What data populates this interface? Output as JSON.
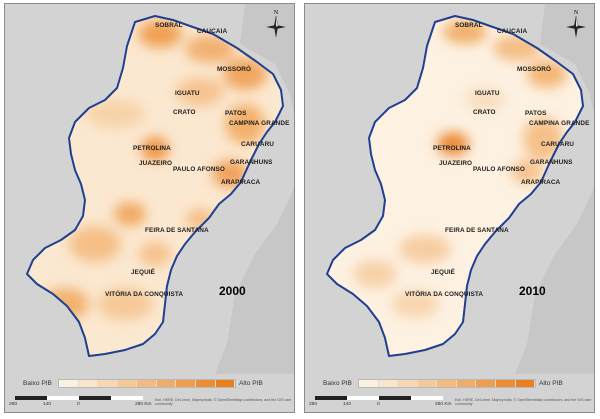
{
  "maps": [
    {
      "year": "2000",
      "cities": [
        {
          "name": "SOBRAL"
        },
        {
          "name": "CAUCAIA"
        },
        {
          "name": "MOSSORÓ"
        },
        {
          "name": "IGUATU"
        },
        {
          "name": "CRATO"
        },
        {
          "name": "PATOS"
        },
        {
          "name": "CAMPINA GRANDE"
        },
        {
          "name": "PETROLINA"
        },
        {
          "name": "CARUARU"
        },
        {
          "name": "JUAZEIRO"
        },
        {
          "name": "GARANHUNS"
        },
        {
          "name": "PAULO AFONSO"
        },
        {
          "name": "ARAPIRACA"
        },
        {
          "name": "FEIRA DE SANTANA"
        },
        {
          "name": "JEQUIÉ"
        },
        {
          "name": "VITÓRIA DA CONQUISTA"
        }
      ]
    },
    {
      "year": "2010",
      "cities": [
        {
          "name": "SOBRAL"
        },
        {
          "name": "CAUCAIA"
        },
        {
          "name": "MOSSORÓ"
        },
        {
          "name": "IGUATU"
        },
        {
          "name": "CRATO"
        },
        {
          "name": "PATOS"
        },
        {
          "name": "CAMPINA GRANDE"
        },
        {
          "name": "PETROLINA"
        },
        {
          "name": "CARUARU"
        },
        {
          "name": "JUAZEIRO"
        },
        {
          "name": "GARANHUNS"
        },
        {
          "name": "PAULO AFONSO"
        },
        {
          "name": "ARAPIRACA"
        },
        {
          "name": "FEIRA DE SANTANA"
        },
        {
          "name": "JEQUIÉ"
        },
        {
          "name": "VITÓRIA DA CONQUISTA"
        }
      ]
    }
  ],
  "legend": {
    "low_label": "Baixo PIB",
    "high_label": "Alto PIB",
    "colors": [
      "#fbf1e3",
      "#f9e5cc",
      "#f7d8b3",
      "#f5ca99",
      "#f3bb80",
      "#f1ac67",
      "#ef9d4e",
      "#ec8e35",
      "#e97f1e"
    ]
  },
  "scale": {
    "ticks": [
      "280",
      "140",
      "0",
      "280 Km"
    ]
  },
  "compass_label": "N",
  "credit": "Esri, HERE, DeLorme, MapmyIndia, © OpenStreetMap contributors, and the GIS user community",
  "colors": {
    "boundary": "#1f3f8f",
    "background": "#d3d3d3",
    "region_base": "#fbe8d0"
  }
}
